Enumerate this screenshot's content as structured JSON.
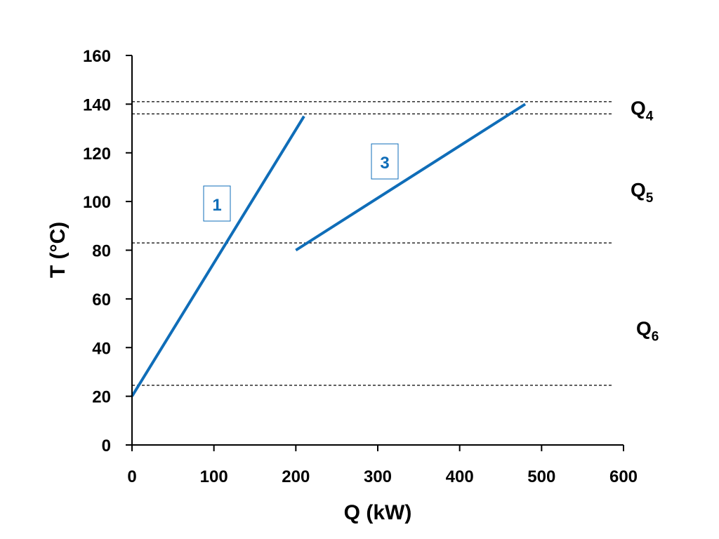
{
  "chart_data": {
    "type": "line",
    "title": "",
    "xlabel": "Q (kW)",
    "ylabel": "T (°C)",
    "xlim": [
      0,
      600
    ],
    "ylim": [
      0,
      160
    ],
    "x_ticks": [
      0,
      100,
      200,
      300,
      400,
      500,
      600
    ],
    "y_ticks": [
      0,
      20,
      40,
      60,
      80,
      100,
      120,
      140,
      160
    ],
    "grid": false,
    "line_color": "#0f6db8",
    "series": [
      {
        "label": "1",
        "points": [
          [
            0,
            20
          ],
          [
            210,
            135
          ]
        ]
      },
      {
        "label": "3",
        "points": [
          [
            200,
            80
          ],
          [
            480,
            140
          ]
        ]
      }
    ],
    "reference_lines": [
      {
        "y": 141
      },
      {
        "y": 136
      },
      {
        "y": 83
      },
      {
        "y": 24.5
      }
    ],
    "interval_labels": [
      {
        "base": "Q",
        "sub": "4",
        "y": 138.5
      },
      {
        "base": "Q",
        "sub": "5",
        "y": 105
      },
      {
        "base": "Q",
        "sub": "6",
        "y": 48
      }
    ]
  }
}
